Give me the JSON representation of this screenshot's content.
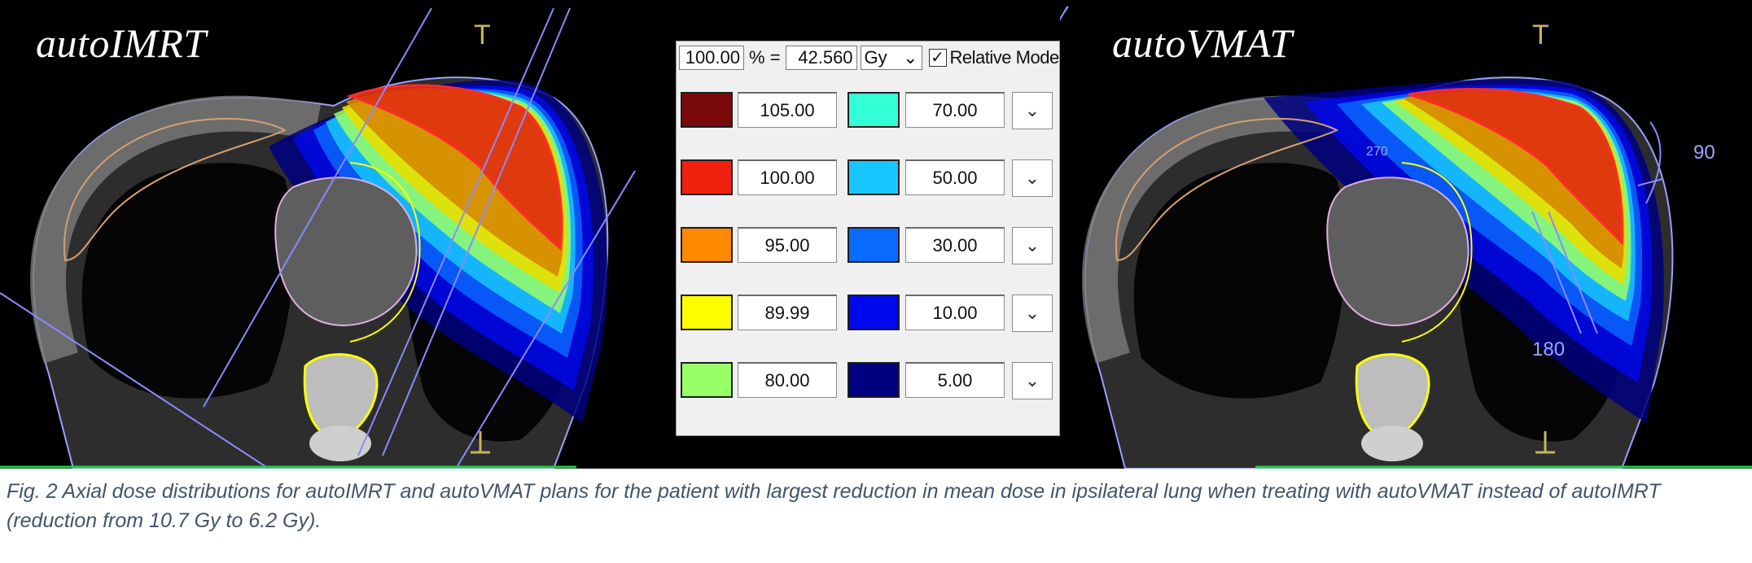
{
  "figure": {
    "panels": [
      {
        "title": "autoIMRT",
        "cross_marker": "T"
      },
      {
        "title": "autoVMAT",
        "cross_marker": "T",
        "angle_labels": [
          "90",
          "180"
        ],
        "small_label": "270"
      }
    ],
    "legend": {
      "percent_value": "100.00",
      "percent_symbol": "%",
      "equals": "=",
      "dose_value": "42.560",
      "unit": "Gy",
      "relative_mode_checked": true,
      "relative_mode_label": "Relative Mode",
      "levels": [
        {
          "value": "105.00",
          "color": "#7a0a0a"
        },
        {
          "value": "100.00",
          "color": "#f2210f"
        },
        {
          "value": "95.00",
          "color": "#ff8a00"
        },
        {
          "value": "89.99",
          "color": "#ffff00"
        },
        {
          "value": "80.00",
          "color": "#99ff66"
        },
        {
          "value": "70.00",
          "color": "#33ffd6"
        },
        {
          "value": "50.00",
          "color": "#18c6ff"
        },
        {
          "value": "30.00",
          "color": "#0a6bff"
        },
        {
          "value": "10.00",
          "color": "#0008ee"
        },
        {
          "value": "5.00",
          "color": "#000080"
        }
      ]
    }
  },
  "caption": "Fig. 2 Axial dose distributions for autoIMRT and autoVMAT plans for the patient with largest reduction in mean dose in ipsilateral lung when treating with autoVMAT instead of autoIMRT (reduction from 10.7 Gy to 6.2 Gy)."
}
